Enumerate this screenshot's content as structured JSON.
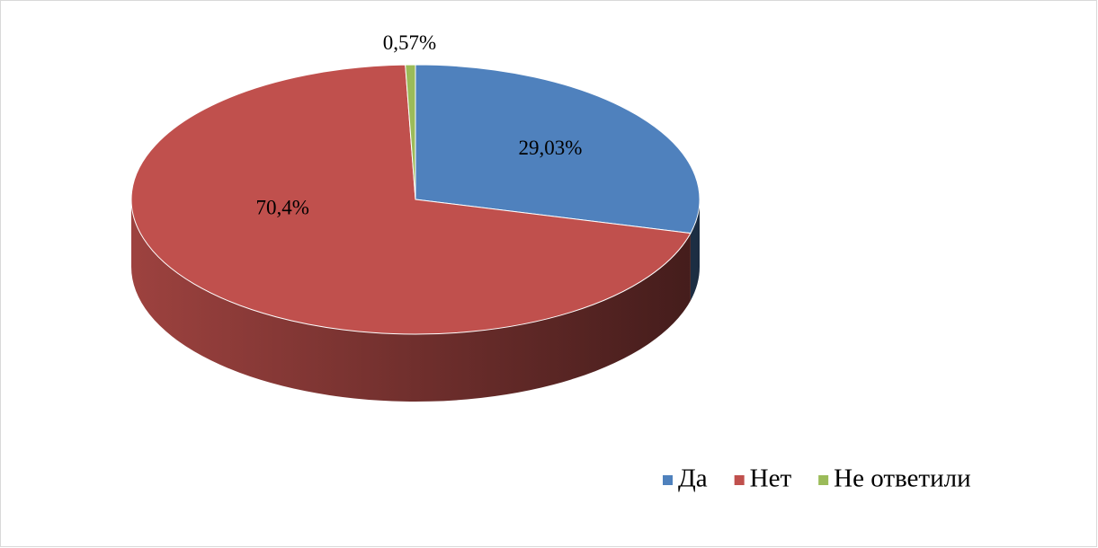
{
  "chart_data": {
    "type": "pie",
    "categories": [
      "Да",
      "Нет",
      "Не ответили"
    ],
    "values": [
      29.03,
      70.4,
      0.57
    ],
    "value_labels": [
      "29,03%",
      "70,4%",
      "0,57%"
    ],
    "colors": [
      "#4f81bd",
      "#c0504d",
      "#9bbb59"
    ],
    "legend": "bottom-right"
  }
}
